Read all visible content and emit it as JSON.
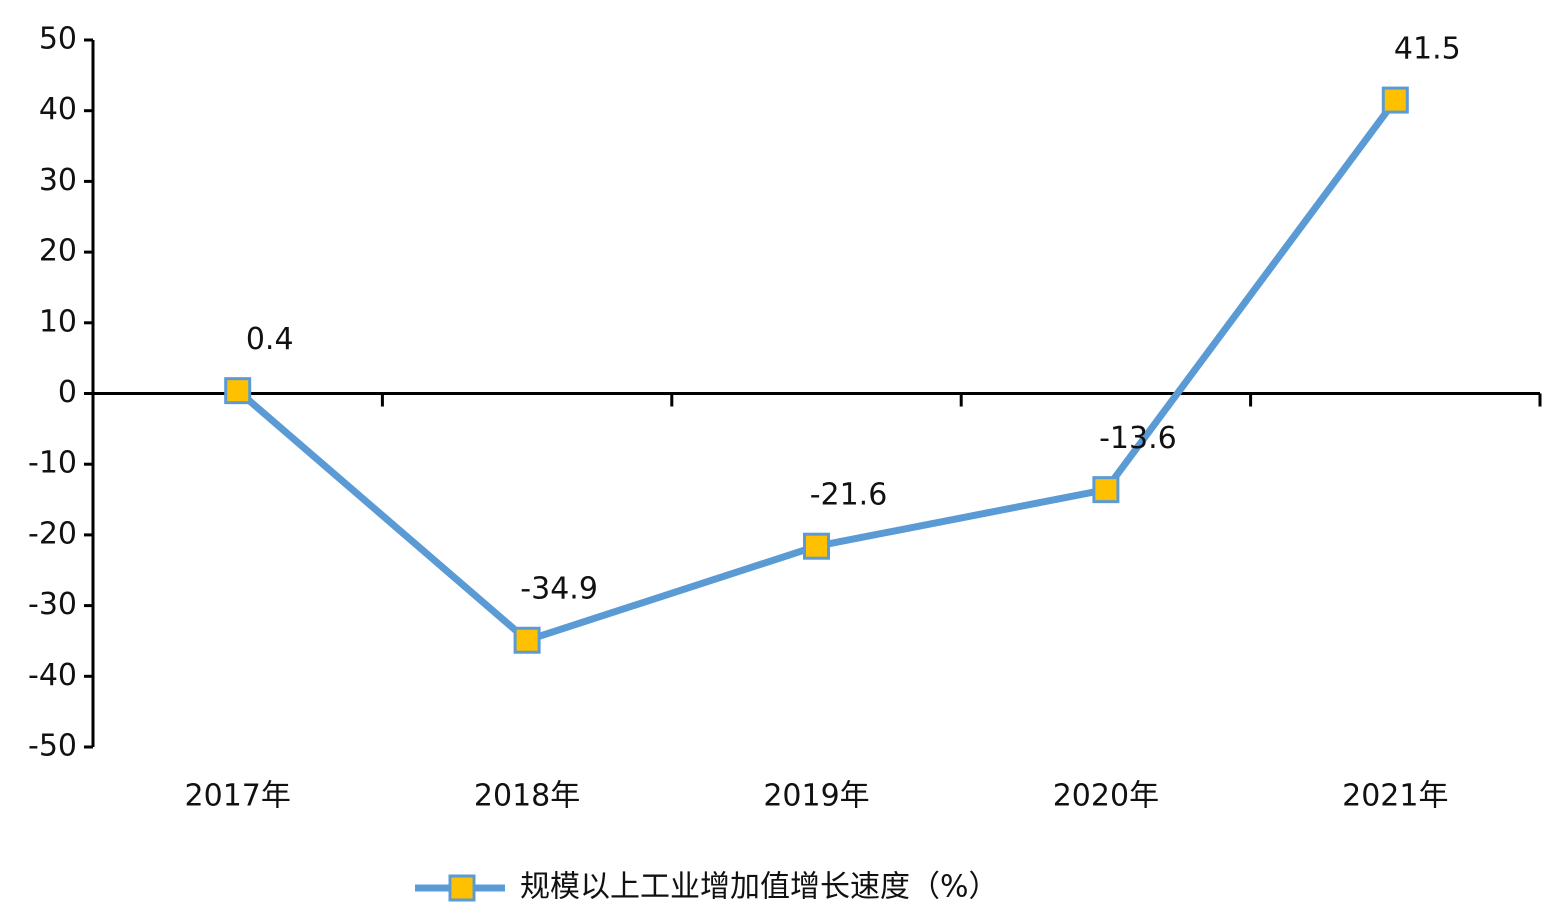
{
  "chart_data": {
    "type": "line",
    "categories": [
      "2017年",
      "2018年",
      "2019年",
      "2020年",
      "2021年"
    ],
    "series": [
      {
        "name": "规模以上工业增加值增长速度（%）",
        "color": "#5b9bd5",
        "marker_color": "#ffc000",
        "values": [
          0.4,
          -34.9,
          -21.6,
          -13.6,
          41.5
        ]
      }
    ],
    "ylim": [
      -50,
      50
    ],
    "yticks": [
      -50,
      -40,
      -30,
      -20,
      -10,
      0,
      10,
      20,
      30,
      40,
      50
    ],
    "grid": false,
    "legend": "bottom"
  }
}
